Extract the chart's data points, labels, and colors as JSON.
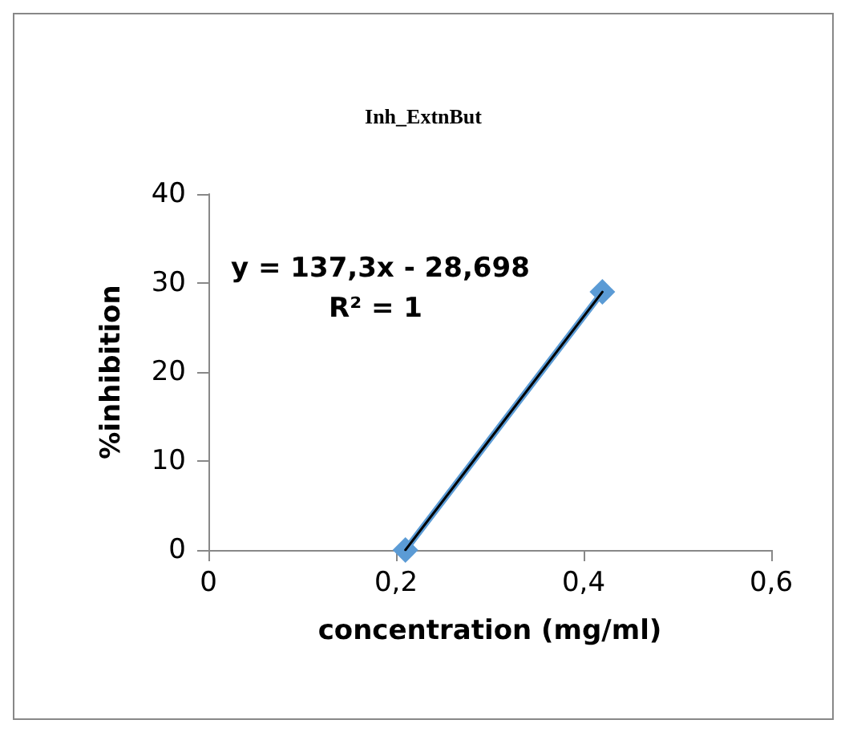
{
  "chart_data": {
    "type": "line",
    "title": "Inh_ExtnBut",
    "xlabel": "concentration (mg/ml)",
    "ylabel": "%inhibition",
    "x": [
      0.21,
      0.42
    ],
    "series": [
      {
        "color": "#5b9bd5",
        "values": [
          0,
          29
        ],
        "marker": "diamond"
      },
      {
        "type": "line",
        "color": "#000000",
        "x": [
          0.21,
          0.42
        ],
        "values": [
          0,
          29
        ],
        "marker": "none"
      }
    ],
    "xlim": [
      0,
      0.6
    ],
    "xticks": [
      {
        "value": 0,
        "label": "0"
      },
      {
        "value": 0.2,
        "label": "0,2"
      },
      {
        "value": 0.4,
        "label": "0,4"
      },
      {
        "value": 0.6,
        "label": "0,6"
      }
    ],
    "ylim": [
      0,
      40
    ],
    "yticks": [
      0,
      10,
      20,
      30,
      40
    ],
    "annotations": [
      "y = 137,3x - 28,698",
      "R² = 1"
    ],
    "grid": false
  }
}
